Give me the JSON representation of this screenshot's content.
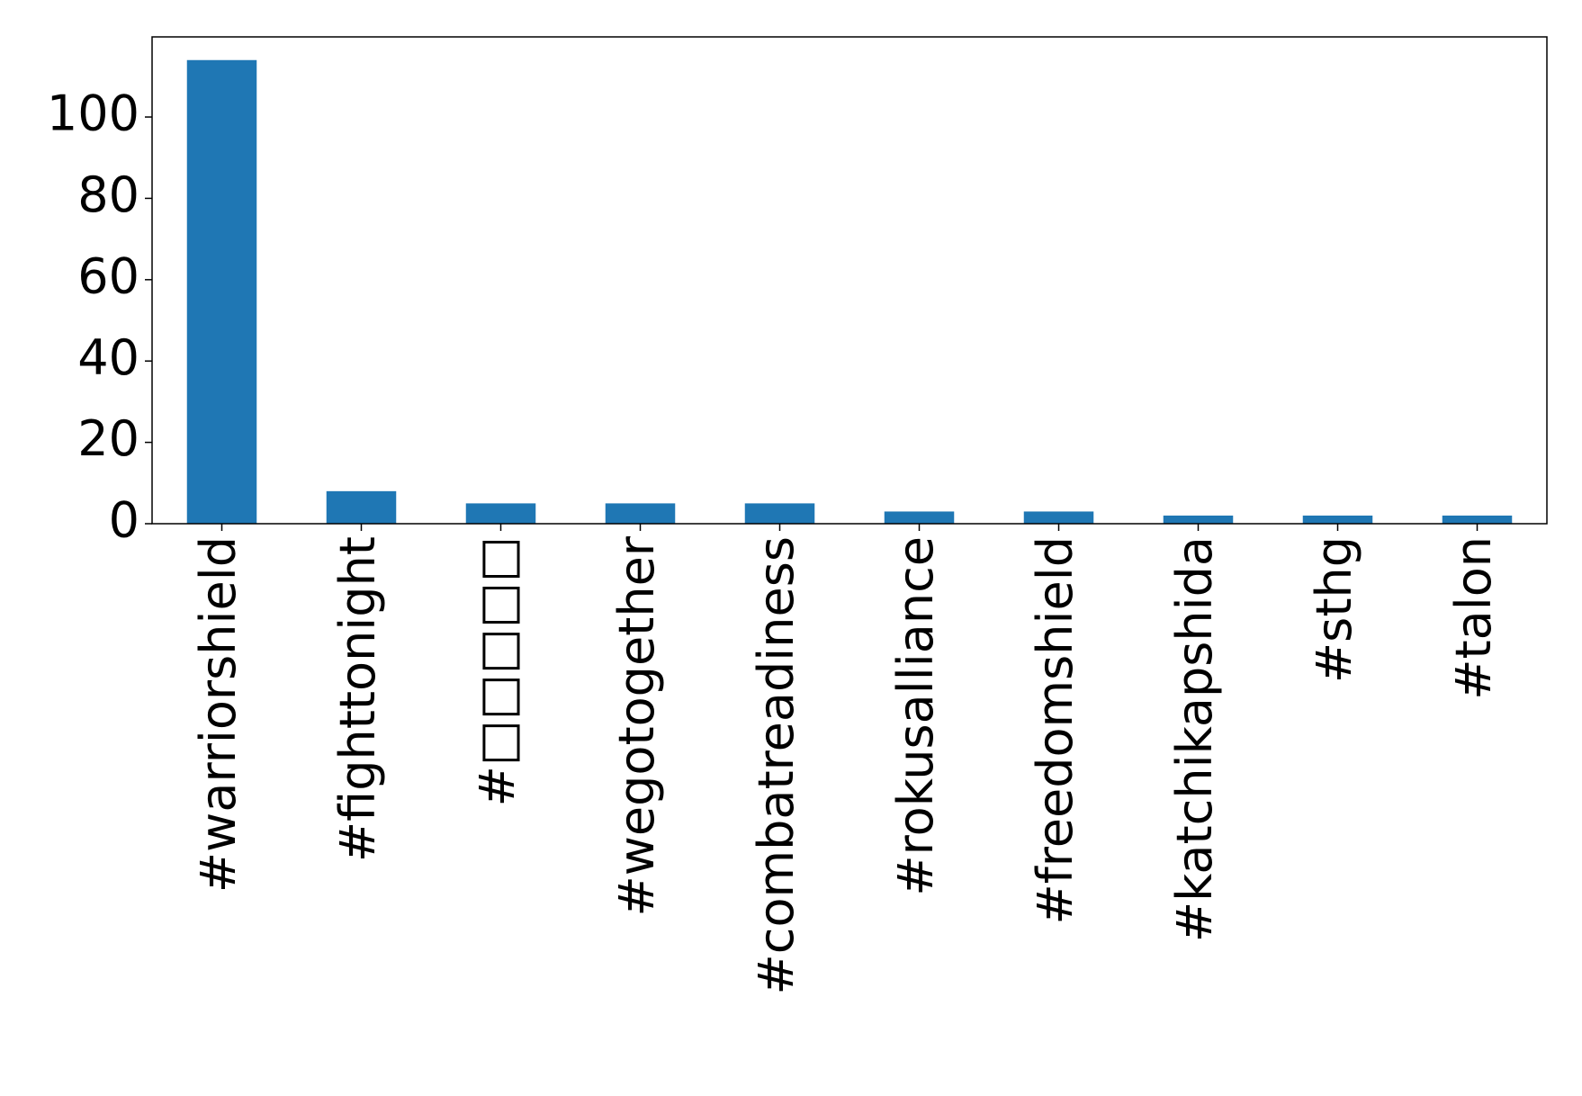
{
  "chart_data": {
    "type": "bar",
    "categories": [
      "#warriorshield",
      "#fighttonight",
      "#□□□□□",
      "#wegotogether",
      "#combatreadiness",
      "#rokusalliance",
      "#freedomshield",
      "#katchikapshida",
      "#sthg",
      "#talon"
    ],
    "values": [
      114,
      8,
      5,
      5,
      5,
      3,
      3,
      2,
      2,
      2
    ],
    "color": "#1f77b4",
    "ylim": [
      0,
      119.7
    ],
    "yticks": [
      0,
      20,
      40,
      60,
      80,
      100
    ],
    "grid": false
  }
}
